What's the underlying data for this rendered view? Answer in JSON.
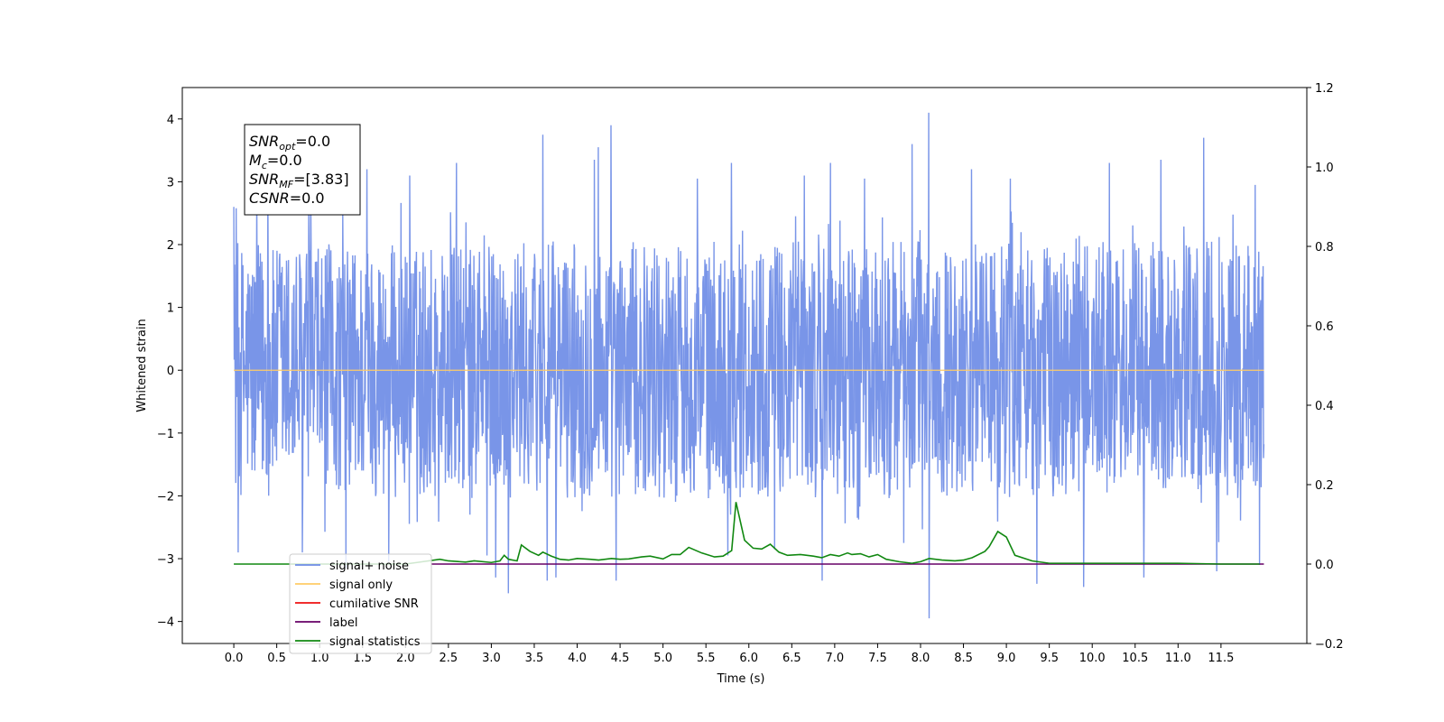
{
  "chart_data": {
    "type": "line",
    "xlabel": "Time (s)",
    "ylabel": "Whitened strain",
    "xlim": [
      -0.6,
      12.5
    ],
    "ylim": [
      -4.35,
      4.5
    ],
    "y2lim": [
      -0.2,
      1.2
    ],
    "x_ticks": [
      0.0,
      0.5,
      1.0,
      1.5,
      2.0,
      2.5,
      3.0,
      3.5,
      4.0,
      4.5,
      5.0,
      5.5,
      6.0,
      6.5,
      7.0,
      7.5,
      8.0,
      8.5,
      9.0,
      9.5,
      10.0,
      10.5,
      11.0,
      11.5
    ],
    "x_tick_labels": [
      "0.0",
      "0.5",
      "1.0",
      "1.5",
      "2.0",
      "2.5",
      "3.0",
      "3.5",
      "4.0",
      "4.5",
      "5.0",
      "5.5",
      "6.0",
      "6.5",
      "7.0",
      "7.5",
      "8.0",
      "8.5",
      "9.0",
      "9.5",
      "10.0",
      "10.5",
      "11.0",
      "11.5"
    ],
    "y_ticks": [
      -4,
      -3,
      -2,
      -1,
      0,
      1,
      2,
      3,
      4
    ],
    "y_tick_labels": [
      "−4",
      "−3",
      "−2",
      "−1",
      "0",
      "1",
      "2",
      "3",
      "4"
    ],
    "y2_ticks": [
      -0.2,
      0.0,
      0.2,
      0.4,
      0.6,
      0.8,
      1.0,
      1.2
    ],
    "y2_tick_labels": [
      "−0.2",
      "0.0",
      "0.2",
      "0.4",
      "0.6",
      "0.8",
      "1.0",
      "1.2"
    ],
    "grid": false,
    "legend_position": "bottom-left",
    "legend": [
      {
        "label": "signal+ noise",
        "color": "#6e8ce6"
      },
      {
        "label": "signal only",
        "color": "#ffcc66"
      },
      {
        "label": "cumilative SNR",
        "color": "#ee1111"
      },
      {
        "label": "label",
        "color": "#660066"
      },
      {
        "label": "signal statistics",
        "color": "#118811"
      }
    ],
    "annotation": {
      "lines": [
        {
          "prefix": "SNR",
          "sub": "opt",
          "suffix": "=0.0"
        },
        {
          "prefix": "M",
          "sub": "c",
          "suffix": "=0.0"
        },
        {
          "prefix": "SNR",
          "sub": "MF",
          "suffix": "=[3.83]"
        },
        {
          "prefix": "CSNR",
          "sub": "",
          "suffix": "=0.0"
        }
      ]
    },
    "series": [
      {
        "name": "signal+ noise",
        "axis": "left",
        "color": "#6e8ce6",
        "x_range": [
          0.0,
          12.0
        ],
        "core_band": [
          -1.95,
          2.05
        ],
        "peaks": [
          {
            "x": 0.0,
            "y": 2.6
          },
          {
            "x": 0.05,
            "y": -2.9
          },
          {
            "x": 0.4,
            "y": 2.9
          },
          {
            "x": 0.8,
            "y": -2.9
          },
          {
            "x": 0.9,
            "y": 3.05
          },
          {
            "x": 1.3,
            "y": -3.15
          },
          {
            "x": 1.55,
            "y": 3.2
          },
          {
            "x": 1.8,
            "y": -3.05
          },
          {
            "x": 2.05,
            "y": 3.1
          },
          {
            "x": 2.6,
            "y": 3.3
          },
          {
            "x": 2.95,
            "y": -2.95
          },
          {
            "x": 3.05,
            "y": -3.3
          },
          {
            "x": 3.2,
            "y": -3.55
          },
          {
            "x": 3.6,
            "y": 3.75
          },
          {
            "x": 3.65,
            "y": -3.35
          },
          {
            "x": 3.75,
            "y": -3.3
          },
          {
            "x": 4.2,
            "y": 3.35
          },
          {
            "x": 4.25,
            "y": 3.55
          },
          {
            "x": 4.4,
            "y": 3.9
          },
          {
            "x": 4.45,
            "y": -3.35
          },
          {
            "x": 5.4,
            "y": 3.05
          },
          {
            "x": 5.8,
            "y": 3.3
          },
          {
            "x": 5.75,
            "y": -2.95
          },
          {
            "x": 6.3,
            "y": -2.85
          },
          {
            "x": 6.65,
            "y": 3.1
          },
          {
            "x": 6.95,
            "y": 3.3
          },
          {
            "x": 6.85,
            "y": -3.35
          },
          {
            "x": 7.35,
            "y": 3.05
          },
          {
            "x": 7.8,
            "y": -2.75
          },
          {
            "x": 7.9,
            "y": 3.6
          },
          {
            "x": 8.1,
            "y": 4.1
          },
          {
            "x": 8.1,
            "y": -3.95
          },
          {
            "x": 8.6,
            "y": 3.2
          },
          {
            "x": 9.05,
            "y": 3.05
          },
          {
            "x": 9.35,
            "y": -3.4
          },
          {
            "x": 9.9,
            "y": -3.45
          },
          {
            "x": 10.2,
            "y": 3.3
          },
          {
            "x": 10.6,
            "y": -3.3
          },
          {
            "x": 10.8,
            "y": 3.35
          },
          {
            "x": 11.3,
            "y": 3.7
          },
          {
            "x": 11.45,
            "y": -3.2
          },
          {
            "x": 11.9,
            "y": 2.95
          },
          {
            "x": 11.95,
            "y": -3.1
          }
        ]
      },
      {
        "name": "signal only",
        "axis": "left",
        "color": "#ffcc66",
        "x": [
          0.0,
          12.0
        ],
        "y": [
          0.0,
          0.0
        ]
      },
      {
        "name": "label",
        "axis": "right",
        "color": "#660066",
        "x": [
          2.3,
          12.0
        ],
        "y": [
          0.0,
          0.0
        ]
      },
      {
        "name": "signal statistics",
        "axis": "right",
        "color": "#118811",
        "x": [
          0.0,
          2.0,
          2.2,
          2.4,
          2.5,
          2.7,
          2.8,
          3.0,
          3.1,
          3.15,
          3.2,
          3.3,
          3.35,
          3.45,
          3.55,
          3.6,
          3.7,
          3.8,
          3.9,
          4.0,
          4.15,
          4.25,
          4.4,
          4.5,
          4.6,
          4.75,
          4.85,
          5.0,
          5.1,
          5.2,
          5.3,
          5.45,
          5.6,
          5.7,
          5.8,
          5.85,
          5.95,
          6.05,
          6.15,
          6.25,
          6.35,
          6.45,
          6.6,
          6.75,
          6.85,
          6.95,
          7.05,
          7.15,
          7.2,
          7.3,
          7.4,
          7.5,
          7.6,
          7.75,
          7.9,
          8.0,
          8.1,
          8.25,
          8.4,
          8.5,
          8.6,
          8.75,
          8.8,
          8.9,
          9.0,
          9.1,
          9.3,
          9.5,
          9.8,
          10.5,
          11.0,
          11.5,
          11.95
        ],
        "y": [
          0.0,
          0.0,
          0.006,
          0.012,
          0.008,
          0.005,
          0.008,
          0.004,
          0.008,
          0.022,
          0.012,
          0.008,
          0.048,
          0.032,
          0.022,
          0.03,
          0.02,
          0.012,
          0.01,
          0.014,
          0.012,
          0.01,
          0.014,
          0.012,
          0.013,
          0.018,
          0.02,
          0.013,
          0.024,
          0.024,
          0.042,
          0.028,
          0.018,
          0.02,
          0.034,
          0.156,
          0.06,
          0.04,
          0.038,
          0.05,
          0.03,
          0.022,
          0.024,
          0.02,
          0.016,
          0.024,
          0.02,
          0.028,
          0.024,
          0.026,
          0.018,
          0.024,
          0.012,
          0.006,
          0.002,
          0.006,
          0.014,
          0.01,
          0.008,
          0.01,
          0.016,
          0.032,
          0.044,
          0.082,
          0.068,
          0.022,
          0.008,
          0.002,
          0.002,
          0.002,
          0.002,
          0.0,
          0.0
        ]
      }
    ]
  }
}
